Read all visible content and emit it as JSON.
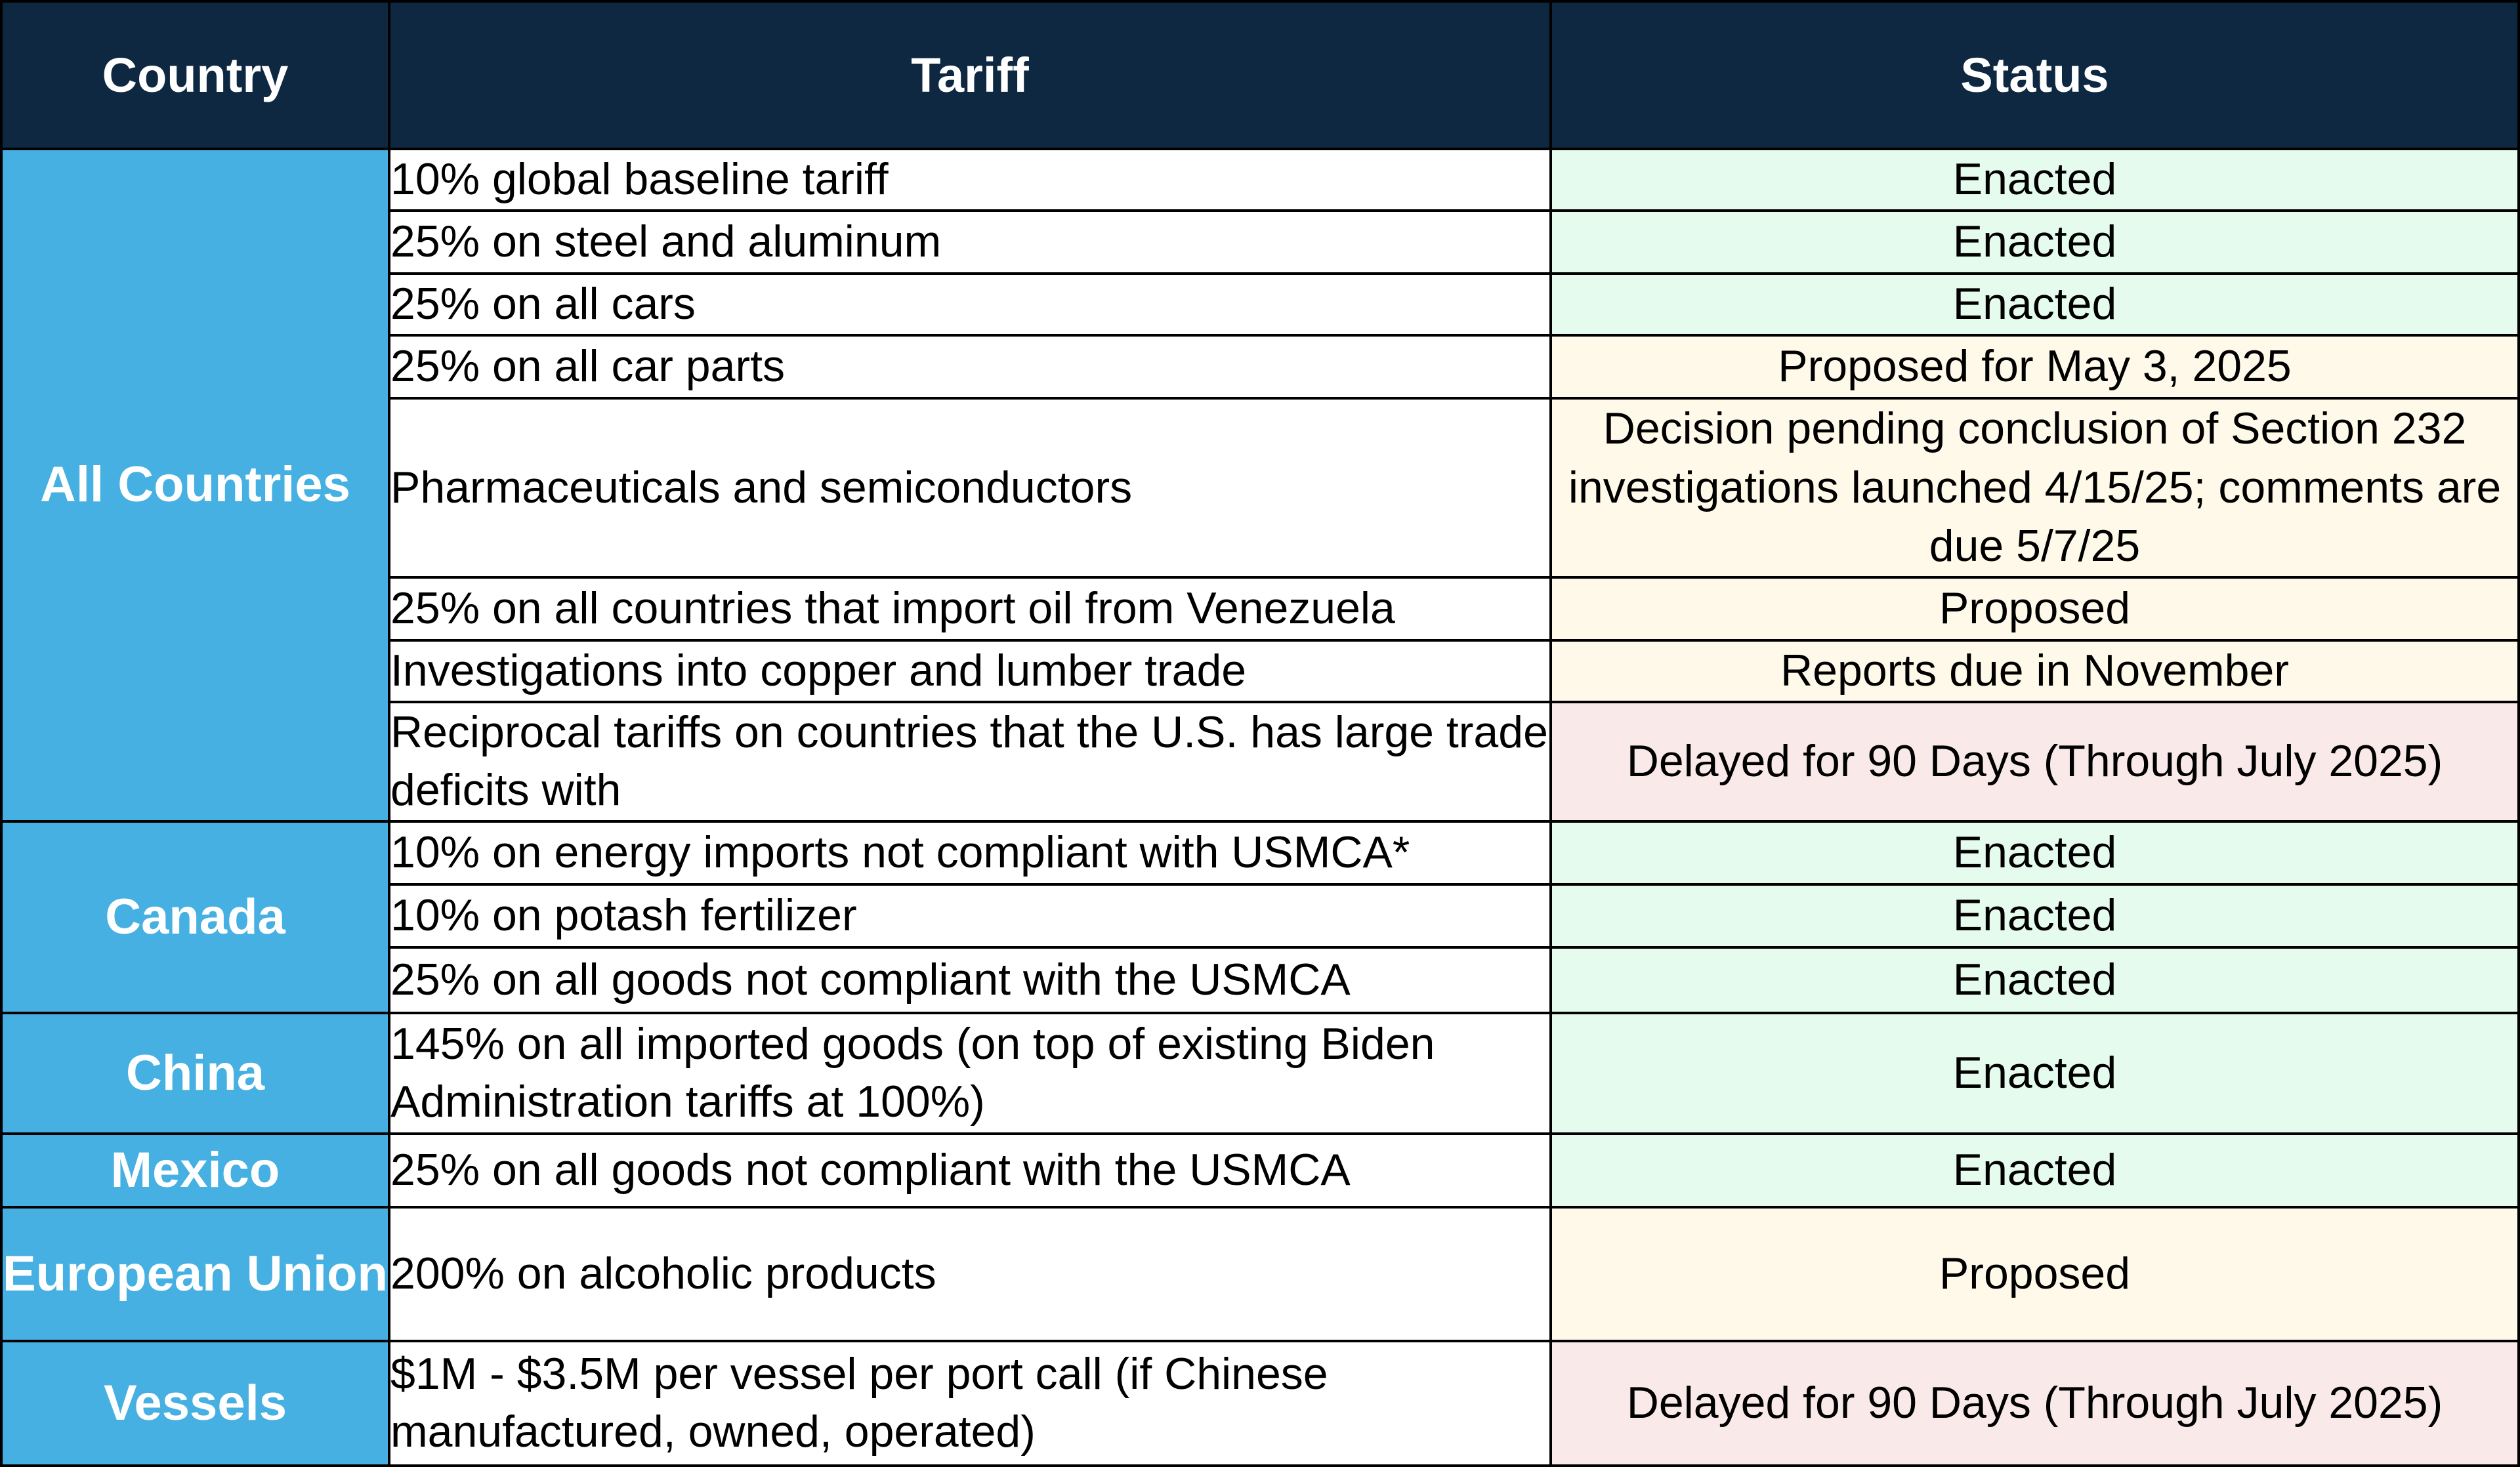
{
  "table": {
    "headers": {
      "country": "Country",
      "tariff": "Tariff",
      "status": "Status"
    },
    "groups": [
      {
        "country": "All Countries",
        "rows": [
          {
            "tariff": "10% global baseline tariff",
            "status": "Enacted"
          },
          {
            "tariff": "25% on steel and aluminum",
            "status": "Enacted"
          },
          {
            "tariff": "25% on all cars",
            "status": "Enacted"
          },
          {
            "tariff": "25% on all car parts",
            "status": "Proposed for May 3, 2025"
          },
          {
            "tariff": "Pharmaceuticals and semiconductors",
            "status": "Decision pending conclusion of Section 232 investigations launched 4/15/25; comments are due 5/7/25"
          },
          {
            "tariff": "25% on all countries that import oil from Venezuela",
            "status": "Proposed"
          },
          {
            "tariff": "Investigations into copper and lumber trade",
            "status": "Reports due in November"
          },
          {
            "tariff": "Reciprocal tariffs on countries that the U.S. has large trade deficits with",
            "status": "Delayed for 90 Days (Through July 2025)"
          }
        ]
      },
      {
        "country": "Canada",
        "rows": [
          {
            "tariff": "10% on energy imports not compliant with USMCA*",
            "status": "Enacted"
          },
          {
            "tariff": "10% on potash fertilizer",
            "status": "Enacted"
          },
          {
            "tariff": "25% on all goods not compliant with the USMCA",
            "status": "Enacted"
          }
        ]
      },
      {
        "country": "China",
        "rows": [
          {
            "tariff": "145% on all imported goods (on top of existing Biden Administration tariffs at 100%)",
            "status": "Enacted"
          }
        ]
      },
      {
        "country": "Mexico",
        "rows": [
          {
            "tariff": "25% on all goods not compliant with the USMCA",
            "status": "Enacted"
          }
        ]
      },
      {
        "country": "European Union",
        "rows": [
          {
            "tariff": "200% on alcoholic products",
            "status": "Proposed"
          }
        ]
      },
      {
        "country": "Vessels",
        "rows": [
          {
            "tariff": "$1M - $3.5M per vessel per port call (if Chinese manufactured, owned, operated)",
            "status": "Delayed for 90 Days (Through July 2025)"
          }
        ]
      }
    ]
  },
  "colors": {
    "header_bg": "#0e2841",
    "country_bg": "#45b0e1",
    "enacted_bg": "#e5fbee",
    "proposed_bg": "#fff9e9",
    "delayed_bg": "#f9e9e9"
  }
}
